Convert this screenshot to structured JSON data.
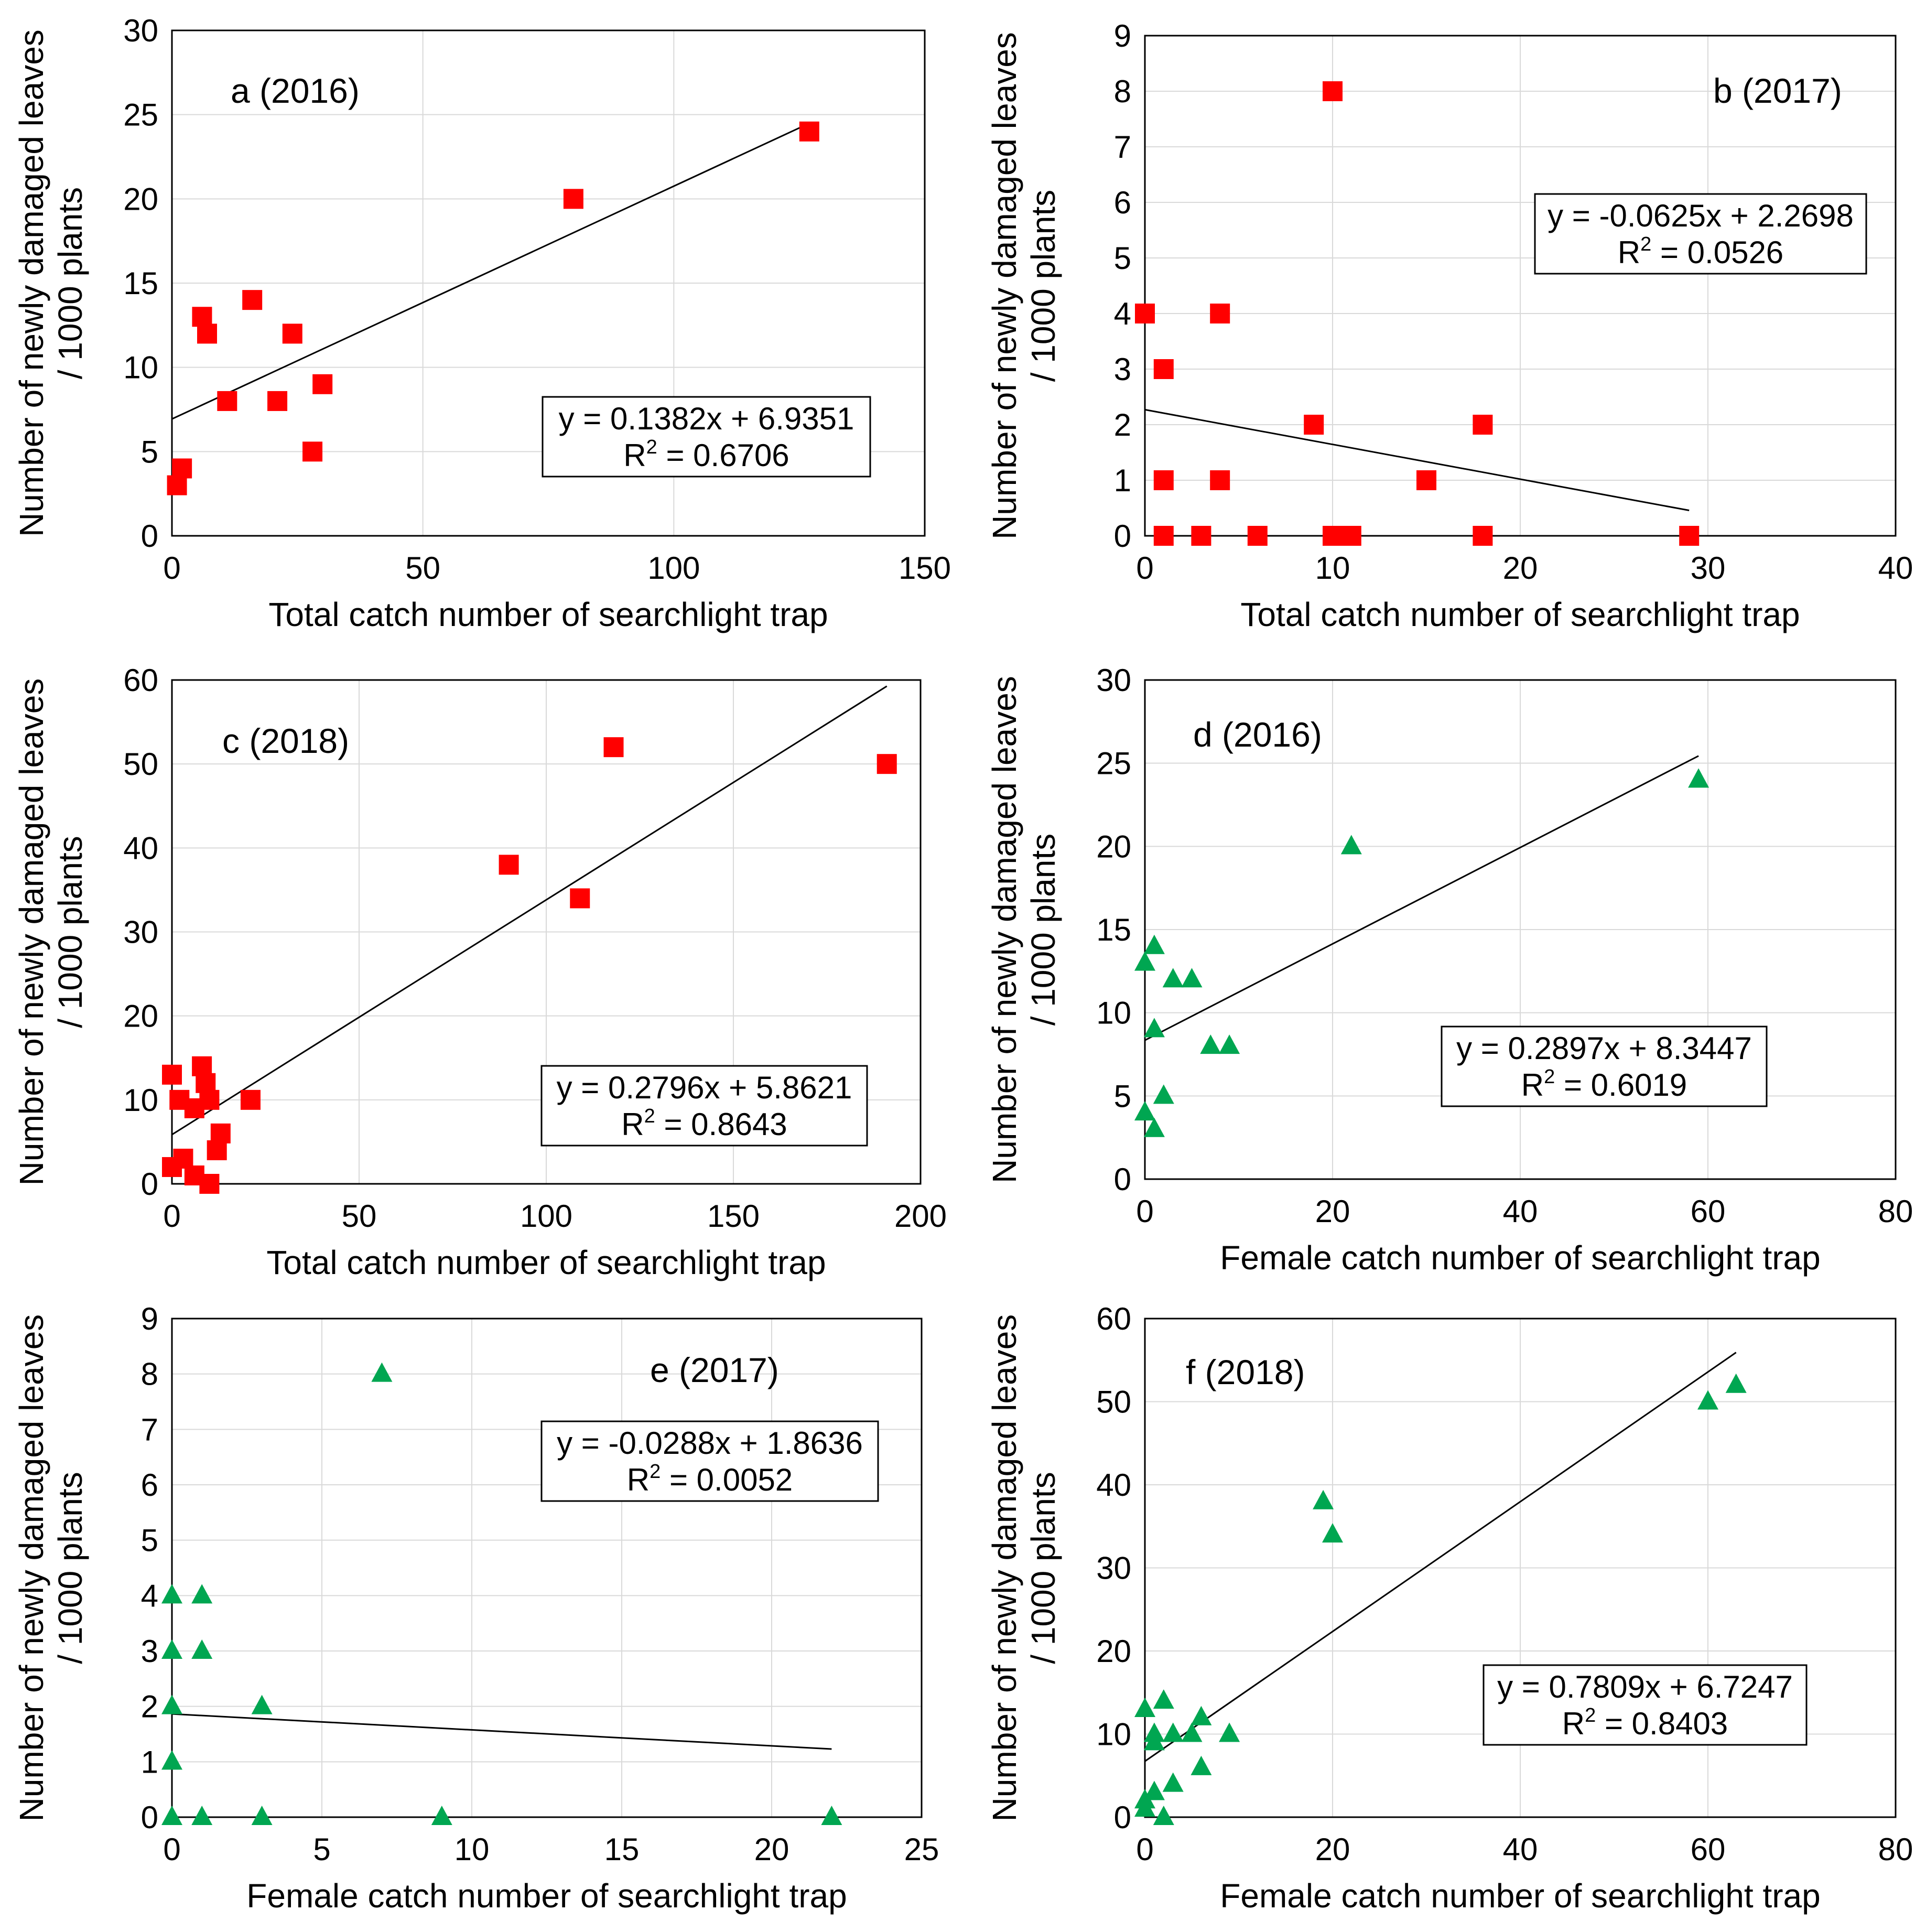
{
  "figure": {
    "ylabel_line1": "Number of newly damaged leaves",
    "ylabel_line2": "/ 1000 plants"
  },
  "colors": {
    "square_marker": "#ff0000",
    "triangle_marker": "#00a651"
  },
  "chart_data": [
    {
      "type": "scatter",
      "panel": "a (2016)",
      "marker": "square",
      "xlabel": "Total catch number of searchlight trap",
      "xlim": [
        0,
        150
      ],
      "ylim": [
        0,
        30
      ],
      "xticks": [
        0,
        50,
        100,
        150
      ],
      "yticks": [
        0,
        5,
        10,
        15,
        20,
        25,
        30
      ],
      "points": [
        [
          1,
          3
        ],
        [
          2,
          4
        ],
        [
          6,
          13
        ],
        [
          7,
          12
        ],
        [
          11,
          8
        ],
        [
          16,
          14
        ],
        [
          21,
          8
        ],
        [
          24,
          12
        ],
        [
          28,
          5
        ],
        [
          30,
          9
        ],
        [
          80,
          20
        ],
        [
          127,
          24
        ]
      ],
      "trendline": {
        "slope": 0.1382,
        "intercept": 6.9351,
        "x_range": [
          0,
          127
        ]
      },
      "equation": "y = 0.1382x + 6.9351",
      "r2_label": "R",
      "r2_value": " = 0.6706",
      "legend": "center-right",
      "grid": true
    },
    {
      "type": "scatter",
      "panel": "b (2017)",
      "marker": "square",
      "xlabel": "Total catch number of searchlight trap",
      "xlim": [
        0,
        40
      ],
      "ylim": [
        0,
        9
      ],
      "xticks": [
        0,
        10,
        20,
        30,
        40
      ],
      "yticks": [
        0,
        1,
        2,
        3,
        4,
        5,
        6,
        7,
        8,
        9
      ],
      "points": [
        [
          0,
          4
        ],
        [
          1,
          3
        ],
        [
          1,
          1
        ],
        [
          1,
          0
        ],
        [
          3,
          0
        ],
        [
          4,
          4
        ],
        [
          4,
          1
        ],
        [
          6,
          0
        ],
        [
          9,
          2
        ],
        [
          10,
          8
        ],
        [
          10,
          0
        ],
        [
          11,
          0
        ],
        [
          15,
          1
        ],
        [
          18,
          2
        ],
        [
          18,
          0
        ],
        [
          29,
          0
        ]
      ],
      "trendline": {
        "slope": -0.0625,
        "intercept": 2.2698,
        "x_range": [
          0,
          29
        ]
      },
      "equation": "y = -0.0625x + 2.2698",
      "r2_label": "R",
      "r2_value": " = 0.0526",
      "legend": "upper-right",
      "grid": true
    },
    {
      "type": "scatter",
      "panel": "c (2018)",
      "marker": "square",
      "xlabel": "Total catch number of searchlight trap",
      "xlim": [
        0,
        200
      ],
      "ylim": [
        0,
        60
      ],
      "xticks": [
        0,
        50,
        100,
        150,
        200
      ],
      "yticks": [
        0,
        10,
        20,
        30,
        40,
        50,
        60
      ],
      "points": [
        [
          0,
          13
        ],
        [
          0,
          2
        ],
        [
          2,
          10
        ],
        [
          3,
          3
        ],
        [
          6,
          9
        ],
        [
          6,
          1
        ],
        [
          8,
          14
        ],
        [
          9,
          12
        ],
        [
          10,
          10
        ],
        [
          10,
          0
        ],
        [
          12,
          4
        ],
        [
          13,
          6
        ],
        [
          21,
          10
        ],
        [
          90,
          38
        ],
        [
          109,
          34
        ],
        [
          118,
          52
        ],
        [
          191,
          50
        ]
      ],
      "trendline": {
        "slope": 0.2796,
        "intercept": 5.8621,
        "x_range": [
          0,
          191
        ]
      },
      "equation": "y = 0.2796x + 5.8621",
      "r2_label": "R",
      "r2_value": " = 0.8643",
      "legend": "lower-right",
      "grid": true
    },
    {
      "type": "scatter",
      "panel": "d (2016)",
      "marker": "triangle",
      "xlabel": "Female catch number of searchlight trap",
      "xlim": [
        0,
        80
      ],
      "ylim": [
        0,
        30
      ],
      "xticks": [
        0,
        20,
        40,
        60,
        80
      ],
      "yticks": [
        0,
        5,
        10,
        15,
        20,
        25,
        30
      ],
      "points": [
        [
          0,
          13
        ],
        [
          0,
          4
        ],
        [
          1,
          14
        ],
        [
          1,
          9
        ],
        [
          1,
          3
        ],
        [
          2,
          5
        ],
        [
          3,
          12
        ],
        [
          5,
          12
        ],
        [
          7,
          8
        ],
        [
          9,
          8
        ],
        [
          22,
          20
        ],
        [
          59,
          24
        ]
      ],
      "trendline": {
        "slope": 0.2897,
        "intercept": 8.3447,
        "x_range": [
          0,
          59
        ]
      },
      "equation": "y = 0.2897x + 8.3447",
      "r2_label": "R",
      "r2_value": " = 0.6019",
      "legend": "center-right",
      "grid": true
    },
    {
      "type": "scatter",
      "panel": "e (2017)",
      "marker": "triangle",
      "xlabel": "Female catch number of searchlight trap",
      "xlim": [
        0,
        25
      ],
      "ylim": [
        0,
        9
      ],
      "xticks": [
        0,
        5,
        10,
        15,
        20,
        25
      ],
      "yticks": [
        0,
        1,
        2,
        3,
        4,
        5,
        6,
        7,
        8,
        9
      ],
      "points": [
        [
          0,
          4
        ],
        [
          0,
          3
        ],
        [
          0,
          2
        ],
        [
          0,
          1
        ],
        [
          0,
          0
        ],
        [
          1,
          4
        ],
        [
          1,
          3
        ],
        [
          1,
          0
        ],
        [
          3,
          2
        ],
        [
          3,
          0
        ],
        [
          7,
          8
        ],
        [
          9,
          0
        ],
        [
          22,
          0
        ]
      ],
      "trendline": {
        "slope": -0.0288,
        "intercept": 1.8636,
        "x_range": [
          0,
          22
        ]
      },
      "equation": "y = -0.0288x + 1.8636",
      "r2_label": "R",
      "r2_value": " = 0.0052",
      "legend": "upper-right",
      "grid": true
    },
    {
      "type": "scatter",
      "panel": "f (2018)",
      "marker": "triangle",
      "xlabel": "Female catch number of searchlight trap",
      "xlim": [
        0,
        80
      ],
      "ylim": [
        0,
        60
      ],
      "xticks": [
        0,
        20,
        40,
        60,
        80
      ],
      "yticks": [
        0,
        10,
        20,
        30,
        40,
        50,
        60
      ],
      "points": [
        [
          0,
          13
        ],
        [
          0,
          2
        ],
        [
          0,
          1
        ],
        [
          1,
          10
        ],
        [
          1,
          9
        ],
        [
          1,
          3
        ],
        [
          2,
          14
        ],
        [
          2,
          0
        ],
        [
          3,
          10
        ],
        [
          3,
          4
        ],
        [
          5,
          10
        ],
        [
          6,
          12
        ],
        [
          6,
          6
        ],
        [
          9,
          10
        ],
        [
          19,
          38
        ],
        [
          20,
          34
        ],
        [
          60,
          50
        ],
        [
          63,
          52
        ]
      ],
      "trendline": {
        "slope": 0.7809,
        "intercept": 6.7247,
        "x_range": [
          0,
          63
        ]
      },
      "equation": "y = 0.7809x + 6.7247",
      "r2_label": "R",
      "r2_value": " = 0.8403",
      "legend": "lower-right",
      "grid": true
    }
  ]
}
